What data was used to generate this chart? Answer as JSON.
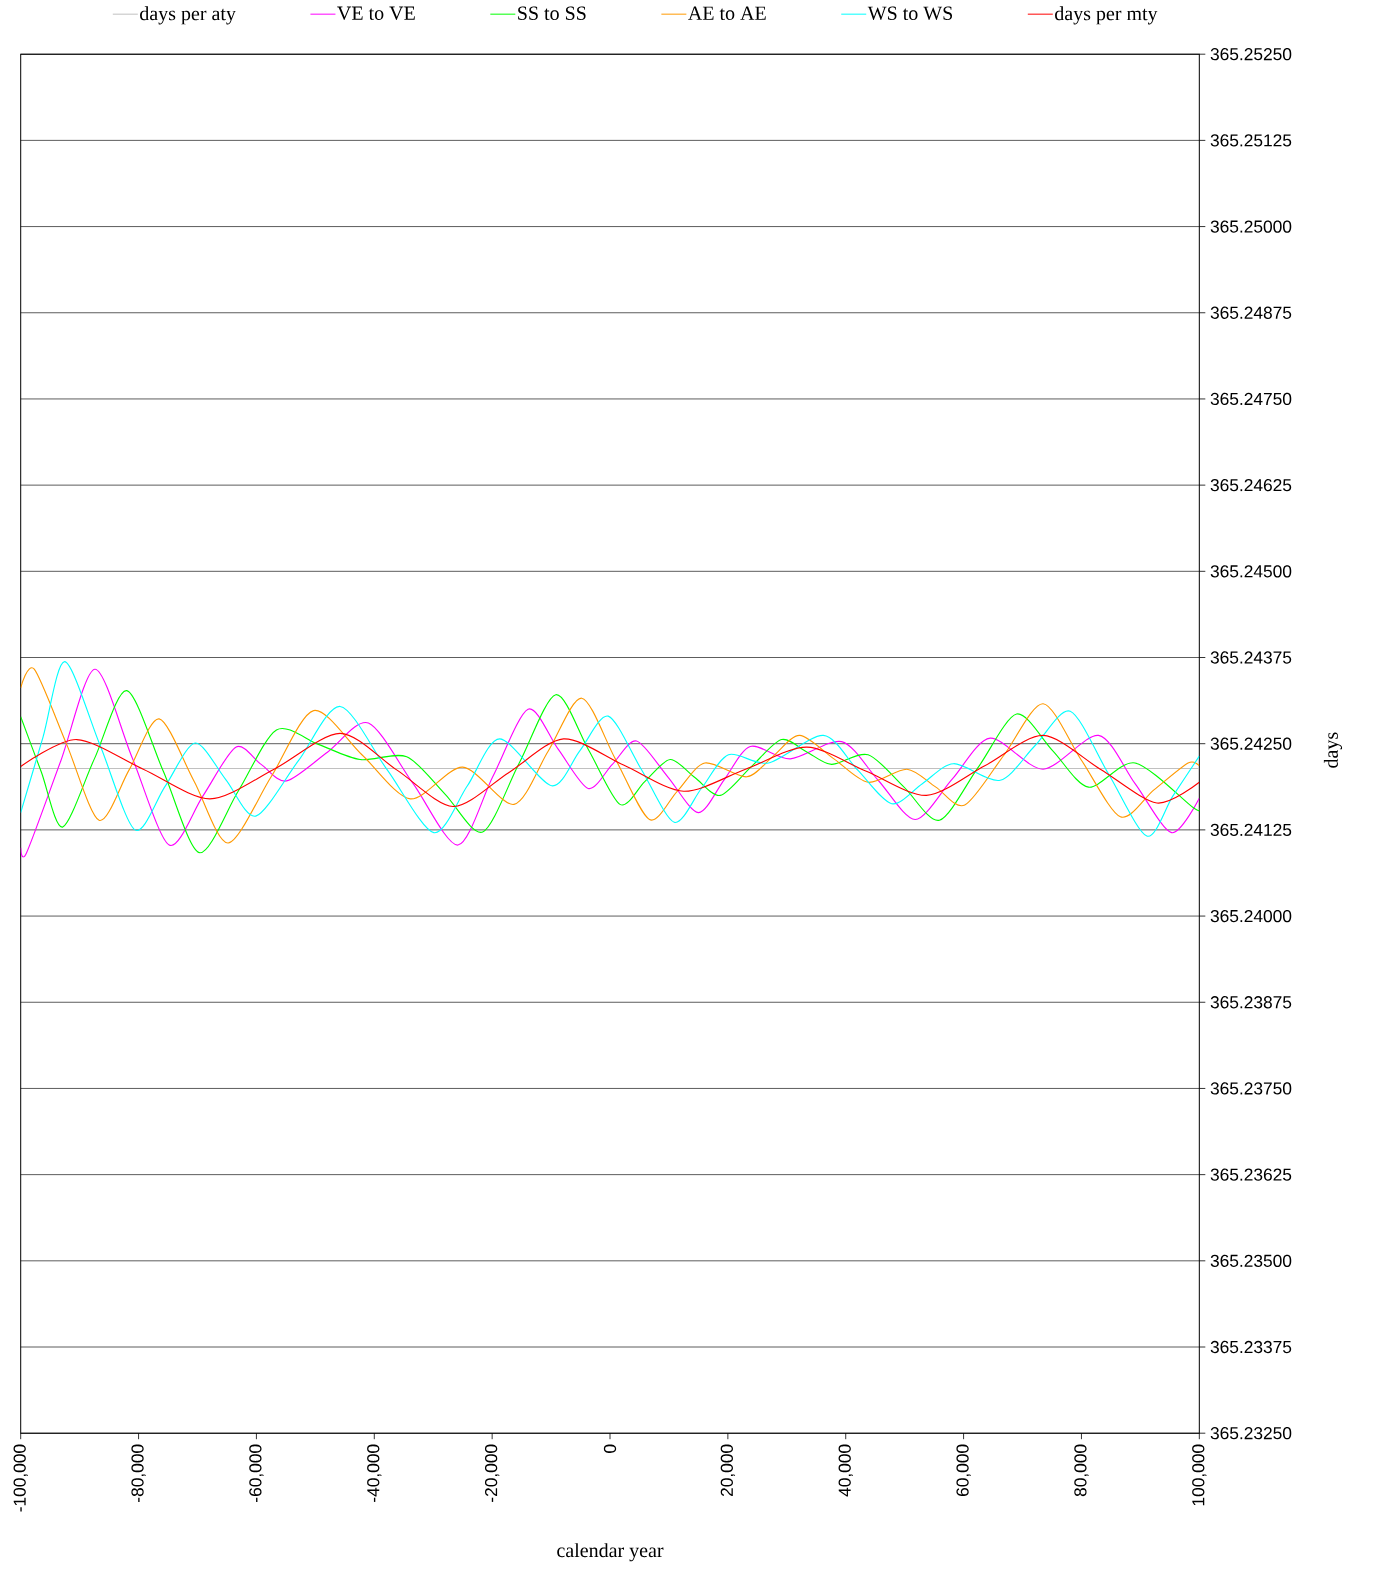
{
  "chart_data": {
    "type": "line",
    "xlabel": "calendar year",
    "ylabel": "days",
    "xlim": [
      -100000,
      100000
    ],
    "ylim": [
      365.2325,
      365.2525
    ],
    "xticks": [
      {
        "value": -100000,
        "label": "-100,000"
      },
      {
        "value": -80000,
        "label": "-80,000"
      },
      {
        "value": -60000,
        "label": "-60,000"
      },
      {
        "value": -40000,
        "label": "-40,000"
      },
      {
        "value": -20000,
        "label": "-20,000"
      },
      0,
      {
        "value": 20000,
        "label": "20,000"
      },
      {
        "value": 40000,
        "label": "40,000"
      },
      {
        "value": 60000,
        "label": "60,000"
      },
      {
        "value": 80000,
        "label": "80,000"
      },
      {
        "value": 100000,
        "label": "100,000"
      }
    ],
    "yticks": [
      {
        "value": 365.2325,
        "label": "365.23250"
      },
      {
        "value": 365.23375,
        "label": "365.23375"
      },
      {
        "value": 365.235,
        "label": "365.23500"
      },
      {
        "value": 365.23625,
        "label": "365.23625"
      },
      {
        "value": 365.2375,
        "label": "365.23750"
      },
      {
        "value": 365.23875,
        "label": "365.23875"
      },
      {
        "value": 365.24,
        "label": "365.24000"
      },
      {
        "value": 365.24125,
        "label": "365.24125"
      },
      {
        "value": 365.2425,
        "label": "365.24250"
      },
      {
        "value": 365.24375,
        "label": "365.24375"
      },
      {
        "value": 365.245,
        "label": "365.24500"
      },
      {
        "value": 365.24625,
        "label": "365.24625"
      },
      {
        "value": 365.2475,
        "label": "365.24750"
      },
      {
        "value": 365.24875,
        "label": "365.24875"
      },
      {
        "value": 365.25,
        "label": "365.25000"
      },
      {
        "value": 365.25125,
        "label": "365.25125"
      },
      {
        "value": 365.2525,
        "label": "365.25250"
      }
    ],
    "grid": "y",
    "legend": "top",
    "series": [
      {
        "name": "days per aty",
        "color": "#c0c0c0",
        "x": [
          -100000,
          100000
        ],
        "values": [
          365.24214,
          365.24214
        ]
      },
      {
        "name": "VE to VE",
        "color": "#ff00ff",
        "x": [
          -100000,
          -99000,
          -93200,
          -87400,
          -81100,
          -74800,
          -69100,
          -63500,
          -59200,
          -54900,
          -47900,
          -41000,
          -33400,
          -25800,
          -19900,
          -13900,
          -8800,
          -3700,
          400,
          4500,
          9800,
          15000,
          19400,
          23800,
          30600,
          39300,
          45500,
          51800,
          58100,
          64500,
          73500,
          82900,
          89100,
          95300,
          100000
        ],
        "values": [
          365.24099,
          365.24092,
          365.24225,
          365.24358,
          365.2423,
          365.24103,
          365.24174,
          365.24245,
          365.2422,
          365.24196,
          365.24238,
          365.2428,
          365.24192,
          365.24103,
          365.24202,
          365.243,
          365.24242,
          365.24185,
          365.2422,
          365.24254,
          365.24202,
          365.2415,
          365.24198,
          365.24246,
          365.24228,
          365.24253,
          365.24197,
          365.2414,
          365.24199,
          365.24258,
          365.24213,
          365.24262,
          365.24192,
          365.24121,
          365.24171
        ]
      },
      {
        "name": "SS to SS",
        "color": "#00ff00",
        "x": [
          -100000,
          -96500,
          -92900,
          -87500,
          -82000,
          -75800,
          -69700,
          -63100,
          -56600,
          -49500,
          -42400,
          -34500,
          -28000,
          -21600,
          -15400,
          -9200,
          -3700,
          1700,
          5900,
          10200,
          14400,
          18700,
          23900,
          29100,
          33400,
          37600,
          43800,
          49900,
          55900,
          62500,
          69000,
          75100,
          81200,
          89100,
          99000,
          100000
        ],
        "values": [
          365.24289,
          365.24209,
          365.24129,
          365.24228,
          365.24327,
          365.2421,
          365.24092,
          365.24181,
          365.2427,
          365.24249,
          365.24227,
          365.24231,
          365.24177,
          365.24122,
          365.24222,
          365.24321,
          365.24242,
          365.24162,
          365.24195,
          365.24227,
          365.24201,
          365.24175,
          365.24216,
          365.24256,
          365.24238,
          365.2422,
          365.24234,
          365.24187,
          365.24139,
          365.24216,
          365.24293,
          365.2424,
          365.24187,
          365.24222,
          365.24157,
          365.24157
        ]
      },
      {
        "name": "AE to AE",
        "color": "#ff9900",
        "x": [
          -100000,
          -97700,
          -92200,
          -86700,
          -81600,
          -76500,
          -70600,
          -64800,
          -57500,
          -50300,
          -42100,
          -33900,
          -25000,
          -16300,
          -10500,
          -4800,
          900,
          6700,
          11400,
          16100,
          23200,
          27700,
          32200,
          38000,
          43800,
          50400,
          55300,
          60200,
          66900,
          73500,
          80000,
          86600,
          92300,
          98100,
          100000
        ],
        "values": [
          365.24331,
          365.24358,
          365.24249,
          365.24139,
          365.24212,
          365.24286,
          365.24196,
          365.24106,
          365.24202,
          365.24298,
          365.24234,
          365.2417,
          365.24216,
          365.24162,
          365.24239,
          365.24316,
          365.24228,
          365.2414,
          365.24181,
          365.24222,
          365.24202,
          365.24232,
          365.24262,
          365.24228,
          365.24194,
          365.24213,
          365.24187,
          365.24161,
          365.24234,
          365.24308,
          365.24226,
          365.24144,
          365.24183,
          365.24222,
          365.24218
        ]
      },
      {
        "name": "WS to WS",
        "color": "#00ffff",
        "x": [
          -100000,
          -96200,
          -92500,
          -86500,
          -80600,
          -75500,
          -70400,
          -65200,
          -60100,
          -52900,
          -45800,
          -37800,
          -29900,
          -24200,
          -18700,
          -9900,
          -5100,
          -300,
          5300,
          10900,
          15500,
          20100,
          26900,
          36200,
          42000,
          47800,
          53000,
          58300,
          66200,
          72100,
          78100,
          84600,
          91100,
          95500,
          100000
        ],
        "values": [
          365.2415,
          365.2426,
          365.24369,
          365.24247,
          365.24125,
          365.24188,
          365.24251,
          365.24198,
          365.24145,
          365.24225,
          365.24304,
          365.24212,
          365.24121,
          365.24189,
          365.24257,
          365.24189,
          365.2424,
          365.2429,
          365.24213,
          365.24136,
          365.24185,
          365.24234,
          365.24222,
          365.24262,
          365.24212,
          365.24163,
          365.24192,
          365.24221,
          365.24197,
          365.24247,
          365.24297,
          365.24206,
          365.24116,
          365.24174,
          365.24232
        ]
      },
      {
        "name": "days per mty",
        "color": "#ff0000",
        "x": [
          -100000,
          -90500,
          -79200,
          -67900,
          -57000,
          -45800,
          -36200,
          -26600,
          -17200,
          -7900,
          2300,
          12500,
          23000,
          33400,
          43500,
          53700,
          63600,
          73500,
          83200,
          92800,
          100000
        ],
        "values": [
          365.24217,
          365.24256,
          365.24213,
          365.2417,
          365.24213,
          365.24265,
          365.24212,
          365.24159,
          365.24208,
          365.24257,
          365.24219,
          365.24181,
          365.24213,
          365.24245,
          365.2421,
          365.24175,
          365.24218,
          365.24262,
          365.24213,
          365.24164,
          365.24194
        ]
      }
    ]
  }
}
